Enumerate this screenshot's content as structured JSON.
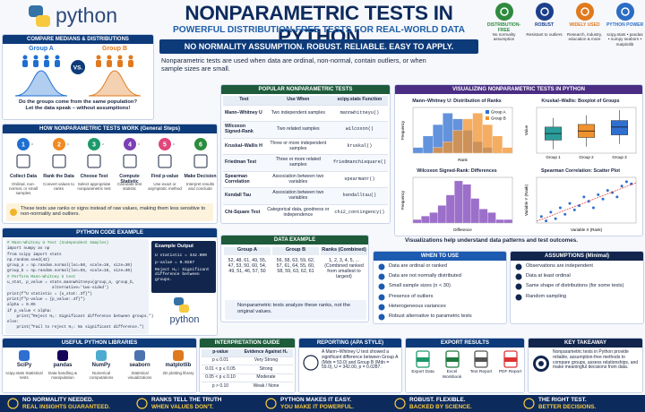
{
  "header": {
    "logo": "python",
    "title": "NONPARAMETRIC TESTS IN PYTHON",
    "subtitle": "POWERFUL DISTRIBUTION-FREE TESTS FOR REAL-WORLD DATA",
    "banner": "NO NORMALITY ASSUMPTION. ROBUST. RELIABLE. EASY TO APPLY.",
    "intro": "Nonparametric tests are used when data are ordinal, non-normal, contain outliers, or when sample sizes are small."
  },
  "features": [
    {
      "title": "DISTRIBUTION-FREE",
      "text": "No normality assumption",
      "color": "#2e8b3e"
    },
    {
      "title": "ROBUST",
      "text": "Resistant to outliers",
      "color": "#1c3f8a"
    },
    {
      "title": "WIDELY USED",
      "text": "Research, industry, education & more",
      "color": "#e07a1f"
    },
    {
      "title": "PYTHON POWER",
      "text": "scipy.stats • pandas • numpy seaborn • matplotlib",
      "color": "#2b6cc4"
    }
  ],
  "compare": {
    "title": "COMPARE MEDIANS & DISTRIBUTIONS",
    "group_a": "Group A",
    "vs": "VS.",
    "group_b": "Group B",
    "question": "Do the groups come from the same population? Let the data speak – without assumptions!"
  },
  "steps": {
    "title": "HOW NONPARAMETRIC TESTS WORK (General Steps)",
    "items": [
      {
        "n": 1,
        "title": "Collect Data",
        "text": "Ordinal, non-normal, or small samples"
      },
      {
        "n": 2,
        "title": "Rank the Data",
        "text": "Convert values to ranks"
      },
      {
        "n": 3,
        "title": "Choose Test",
        "text": "Select appropriate nonparametric test"
      },
      {
        "n": 4,
        "title": "Compute Statistic",
        "text": "Calculate test statistic"
      },
      {
        "n": 5,
        "title": "Find p-value",
        "text": "Use exact or asymptotic method"
      },
      {
        "n": 6,
        "title": "Make Decision",
        "text": "Interpret results and conclude"
      }
    ],
    "note": "These tests use ranks or signs instead of raw values, making them less sensitive to non-normality and outliers."
  },
  "tests": {
    "title": "POPULAR NONPARAMETRIC TESTS",
    "columns": [
      "Test",
      "Use When",
      "scipy.stats Function"
    ],
    "rows": [
      [
        "Mann–Whitney U",
        "Two independent samples",
        "mannwhitneyu()"
      ],
      [
        "Wilcoxon Signed-Rank",
        "Two related samples",
        "wilcoxon()"
      ],
      [
        "Kruskal–Wallis H",
        "Three or more independent samples",
        "kruskal()"
      ],
      [
        "Friedman Test",
        "Three or more related samples",
        "friedmanchisquare()"
      ],
      [
        "Spearman Correlation",
        "Association between two variables",
        "spearmanr()"
      ],
      [
        "Kendall Tau",
        "Association between two variables",
        "kendalltau()"
      ],
      [
        "Chi-Square Test",
        "Categorical data, goodness or independence",
        "chi2_contingency()"
      ]
    ]
  },
  "viz": {
    "title": "VISUALIZING NONPARAMETRIC TESTS IN PYTHON",
    "note": "Visualizations help understand data patterns and test outcomes.",
    "charts": [
      {
        "type": "histogram",
        "title": "Mann–Whitney U: Distribution of Ranks",
        "xlabel": "Rank",
        "ylabel": "Frequency",
        "bins": [
          0,
          6,
          12,
          18,
          24,
          30,
          36,
          42,
          48,
          54,
          60
        ],
        "xlim": [
          0,
          60
        ],
        "ylim": [
          0,
          8
        ],
        "series": [
          {
            "name": "Group A",
            "color": "#2f6fd0",
            "values": [
              1,
              3,
              5,
              7,
              6,
              4,
              2,
              1,
              0,
              0
            ]
          },
          {
            "name": "Group B",
            "color": "#f0922e",
            "values": [
              0,
              0,
              1,
              2,
              4,
              6,
              7,
              5,
              3,
              1
            ]
          }
        ]
      },
      {
        "type": "box",
        "title": "Kruskal–Wallis: Boxplot of Groups",
        "ylabel": "Value",
        "categories": [
          "Group 1",
          "Group 2",
          "Group 3"
        ],
        "ylim": [
          35,
          70
        ],
        "boxes": [
          {
            "color": "#2a9d9b",
            "min": 38,
            "q1": 45,
            "median": 50,
            "q3": 55,
            "max": 62
          },
          {
            "color": "#f0922e",
            "min": 40,
            "q1": 47,
            "median": 52,
            "q3": 57,
            "max": 64
          },
          {
            "color": "#2f6fd0",
            "min": 42,
            "q1": 49,
            "median": 55,
            "q3": 60,
            "max": 68
          }
        ]
      },
      {
        "type": "histogram",
        "title": "Wilcoxon Signed-Rank: Differences",
        "xlabel": "Difference",
        "ylabel": "Frequency",
        "bins": [
          -15,
          -12.5,
          -10,
          -7.5,
          -5,
          -2.5,
          0,
          2.5,
          5,
          7.5,
          10,
          12.5,
          15
        ],
        "xlim": [
          -15,
          15
        ],
        "ylim": [
          0,
          13
        ],
        "series": [
          {
            "name": "Differences",
            "color": "#7b3fb8",
            "values": [
              1,
              2,
              3,
              5,
              8,
              12,
              11,
              7,
              4,
              3,
              1,
              1
            ]
          }
        ]
      },
      {
        "type": "scatter",
        "title": "Spearman Correlation: Scatter Plot",
        "xlabel": "Variable X (Rank)",
        "ylabel": "Variable Y (Rank)",
        "color": "#2f6fd0",
        "xlim": [
          0,
          21
        ],
        "ylim": [
          0,
          21
        ],
        "x": [
          1,
          2,
          3,
          4,
          5,
          6,
          7,
          8,
          9,
          10,
          11,
          12,
          13,
          14,
          15,
          16,
          17,
          18,
          19,
          20
        ],
        "y": [
          3,
          1,
          5,
          2,
          7,
          4,
          9,
          6,
          8,
          12,
          10,
          7,
          13,
          11,
          15,
          14,
          12,
          17,
          19,
          18
        ]
      }
    ]
  },
  "code": {
    "title": "PYTHON CODE EXAMPLE",
    "lines": [
      "# Mann-Whitney U Test (Independent Samples)",
      "import numpy as np",
      "from scipy import stats",
      "np.random.seed(42)",
      "group_a = np.random.normal(loc=50, scale=10, size=30)",
      "group_b = np.random.normal(loc=55, scale=10, size=30)",
      "# Perform Mann-Whitney U test",
      "u_stat, p_value = stats.mannwhitneyu(group_a, group_b,",
      "                   alternative='two-sided')",
      "print(f\"U statistic = {u_stat:.3f}\")",
      "print(f\"p-value = {p_value:.4f}\")",
      "alpha = 0.05",
      "if p_value < alpha:",
      "    print(\"Reject H₀: Significant difference between groups.\")",
      "else:",
      "    print(\"Fail to reject H₀: No significant difference.\")"
    ],
    "output_title": "Example Output",
    "output": [
      "U statistic = 342.000",
      "p-value = 0.0287",
      "Reject H₀: Significant difference between groups."
    ],
    "logo": "python"
  },
  "data_example": {
    "title": "DATA EXAMPLE",
    "columns": [
      "Group A",
      "Group B",
      "Ranks (Combined)"
    ],
    "cells": [
      "52, 48, 61, 49, 55, 47, 53, 50, 60, 54, 49, 51, 46, 57, 50",
      "56, 58, 63, 59, 62, 57, 61, 64, 55, 60, 58, 59, 63, 62, 61",
      "1, 2, 3, 4, 5, ... (Combined ranked from smallest to largest)"
    ],
    "note": "Nonparametric tests analyze these ranks, not the original values."
  },
  "when": {
    "title": "WHEN TO USE",
    "items": [
      "Data are ordinal or ranked",
      "Data are not normally distributed",
      "Small sample sizes (n < 30)",
      "Presence of outliers",
      "Heterogeneous variances",
      "Robust alternative to parametric tests"
    ]
  },
  "assumptions": {
    "title": "ASSUMPTIONS (Minimal)",
    "items": [
      "Observations are independent",
      "Data at least ordinal",
      "Same shape of distributions (for some tests)",
      "Random sampling"
    ]
  },
  "libraries": {
    "title": "USEFUL PYTHON LIBRARIES",
    "items": [
      {
        "name": "SciPy",
        "text": "scipy.stats Statistical tests"
      },
      {
        "name": "pandas",
        "text": "Data handling & manipulation"
      },
      {
        "name": "NumPy",
        "text": "Numerical computations"
      },
      {
        "name": "seaborn",
        "text": "Statistical visualizations"
      },
      {
        "name": "matplotlib",
        "text": "2D plotting library"
      }
    ]
  },
  "interpretation": {
    "title": "INTERPRETATION GUIDE",
    "columns": [
      "p-value",
      "Evidence Against H₀"
    ],
    "rows": [
      [
        "p ≤ 0.01",
        "Very Strong"
      ],
      [
        "0.01 < p ≤ 0.05",
        "Strong"
      ],
      [
        "0.05 < p ≤ 0.10",
        "Moderate"
      ],
      [
        "p > 0.10",
        "Weak / None"
      ]
    ]
  },
  "reporting": {
    "title": "REPORTING (APA STYLE)",
    "text": "A Mann–Whitney U test showed a significant difference between Group A (Mdn = 53.0) and Group B (Mdn = 59.0), U = 342.00, p = 0.0287."
  },
  "export": {
    "title": "EXPORT RESULTS",
    "items": [
      "Export Data",
      "Excel Workbook",
      "Text Report",
      "PDF Report"
    ]
  },
  "takeaway": {
    "title": "KEY TAKEAWAY",
    "text": "Nonparametric tests in Python provide reliable, assumption-free methods to compare groups, assess relationships, and make meaningful decisions from data."
  },
  "footer": [
    {
      "line1": "NO NORMALITY NEEDED.",
      "line2": "REAL INSIGHTS GUARANTEED."
    },
    {
      "line1": "RANKS TELL THE TRUTH",
      "line2": "WHEN VALUES DON'T."
    },
    {
      "line1": "PYTHON MAKES IT EASY.",
      "line2": "YOU MAKE IT POWERFUL."
    },
    {
      "line1": "ROBUST. FLEXIBLE.",
      "line2": "BACKED BY SCIENCE."
    },
    {
      "line1": "THE RIGHT TEST.",
      "line2": "BETTER DECISIONS."
    }
  ]
}
